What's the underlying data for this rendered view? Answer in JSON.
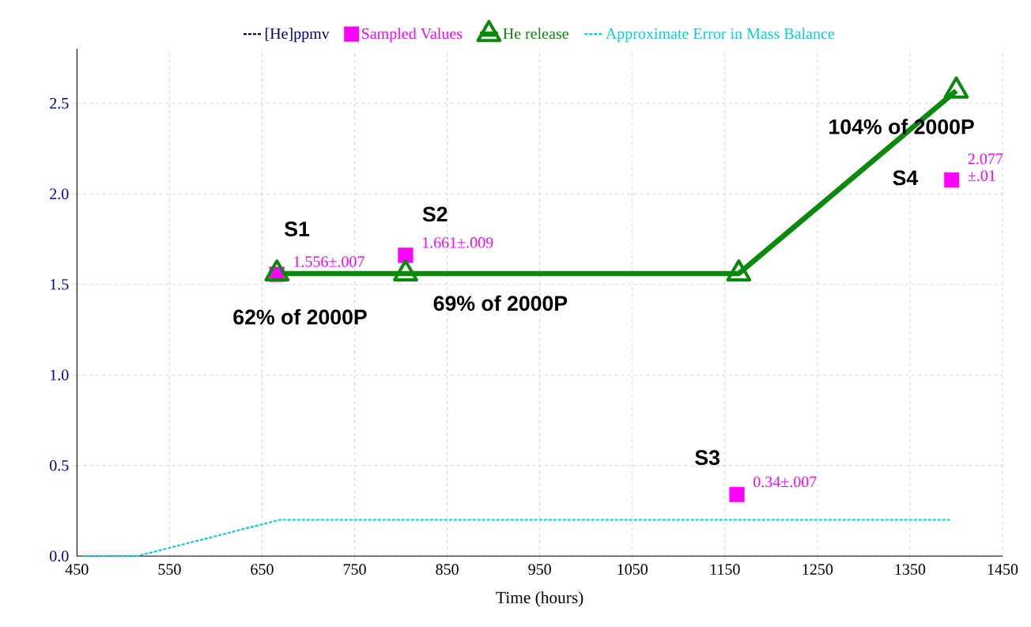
{
  "chart_data": {
    "type": "line",
    "xlabel": "Time (hours)",
    "xlim": [
      450,
      1450
    ],
    "xticks": [
      450,
      550,
      650,
      750,
      850,
      950,
      1050,
      1150,
      1250,
      1350,
      1450
    ],
    "ylim": [
      0,
      2.8
    ],
    "yticks": [
      {
        "value": 0,
        "label": "0.0"
      },
      {
        "value": 0.5,
        "label": "0.5"
      },
      {
        "value": 1,
        "label": "1.0"
      },
      {
        "value": 1.5,
        "label": "1.5"
      },
      {
        "value": 2,
        "label": "2.0"
      },
      {
        "value": 2.5,
        "label": "2.5"
      }
    ],
    "grid": true,
    "legend": "top",
    "series": [
      {
        "name": "[He]ppmv",
        "color": "#000080",
        "line_style": "dashed",
        "marker": "none"
      },
      {
        "name": "Sampled Values",
        "type": "scatter",
        "color": "#ff00ff",
        "marker": "square",
        "x": [
          666,
          805,
          1163,
          1395
        ],
        "values": [
          1.556,
          1.661,
          0.34,
          2.077
        ],
        "value_labels": [
          "1.556±.007",
          "1.661±.009",
          "0.34±.007",
          "2.077 ±.01"
        ]
      },
      {
        "name": "He release",
        "color": "#0a8a0a",
        "marker": "triangle",
        "line_style": "solid",
        "x": [
          666,
          805,
          1165,
          1400
        ],
        "values": [
          1.56,
          1.56,
          1.56,
          2.57
        ]
      },
      {
        "name": "Approximate Error in Mass Balance",
        "color": "#00d0e0",
        "marker": "none",
        "line_style": "dashed",
        "x": [
          457,
          515,
          669,
          1393
        ],
        "values": [
          0,
          0,
          0.2,
          0.2
        ]
      }
    ],
    "annotations": [
      {
        "text": "S1",
        "x": 666,
        "y": 1.556
      },
      {
        "text": "S2",
        "x": 805,
        "y": 1.661
      },
      {
        "text": "S3",
        "x": 1163,
        "y": 0.34
      },
      {
        "text": "S4",
        "x": 1395,
        "y": 2.077
      },
      {
        "text": "62% of 2000P",
        "x": 666,
        "y": 1.56
      },
      {
        "text": "69% of 2000P",
        "x": 805,
        "y": 1.56
      },
      {
        "text": "104% of 2000P",
        "x": 1400,
        "y": 2.57
      }
    ]
  }
}
